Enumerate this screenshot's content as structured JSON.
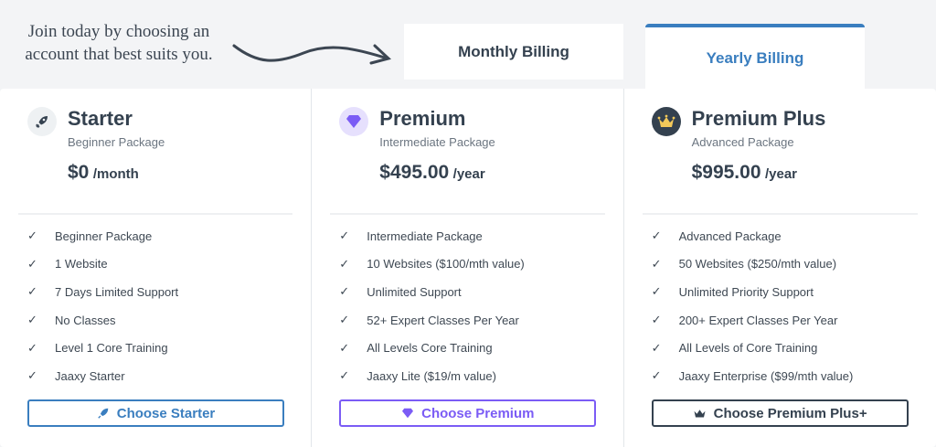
{
  "intro": "Join today by choosing an account that best suits you.",
  "tabs": {
    "monthly": "Monthly Billing",
    "yearly": "Yearly Billing",
    "active": "yearly"
  },
  "colors": {
    "accent": "#3a7ebf",
    "premium": "#7b5cf5",
    "dark": "#34414f",
    "gold": "#f3c95a"
  },
  "plans": [
    {
      "icon": "rocket-icon",
      "name": "Starter",
      "subtitle": "Beginner Package",
      "price": "$0",
      "period": "/month",
      "features": [
        "Beginner Package",
        "1 Website",
        "7 Days Limited Support",
        "No Classes",
        "Level 1 Core Training",
        "Jaaxy Starter"
      ],
      "button": "Choose Starter"
    },
    {
      "icon": "diamond-icon",
      "name": "Premium",
      "subtitle": "Intermediate Package",
      "price": "$495.00",
      "period": "/year",
      "features": [
        "Intermediate Package",
        "10 Websites ($100/mth value)",
        "Unlimited Support",
        "52+ Expert Classes Per Year",
        "All Levels Core Training",
        "Jaaxy Lite ($19/m value)"
      ],
      "button": "Choose Premium"
    },
    {
      "icon": "crown-icon",
      "name": "Premium Plus",
      "subtitle": "Advanced Package",
      "price": "$995.00",
      "period": "/year",
      "features": [
        "Advanced Package",
        "50 Websites ($250/mth value)",
        "Unlimited Priority Support",
        "200+ Expert Classes Per Year",
        "All Levels of Core Training",
        "Jaaxy Enterprise ($99/mth value)"
      ],
      "button": "Choose Premium Plus+"
    }
  ]
}
